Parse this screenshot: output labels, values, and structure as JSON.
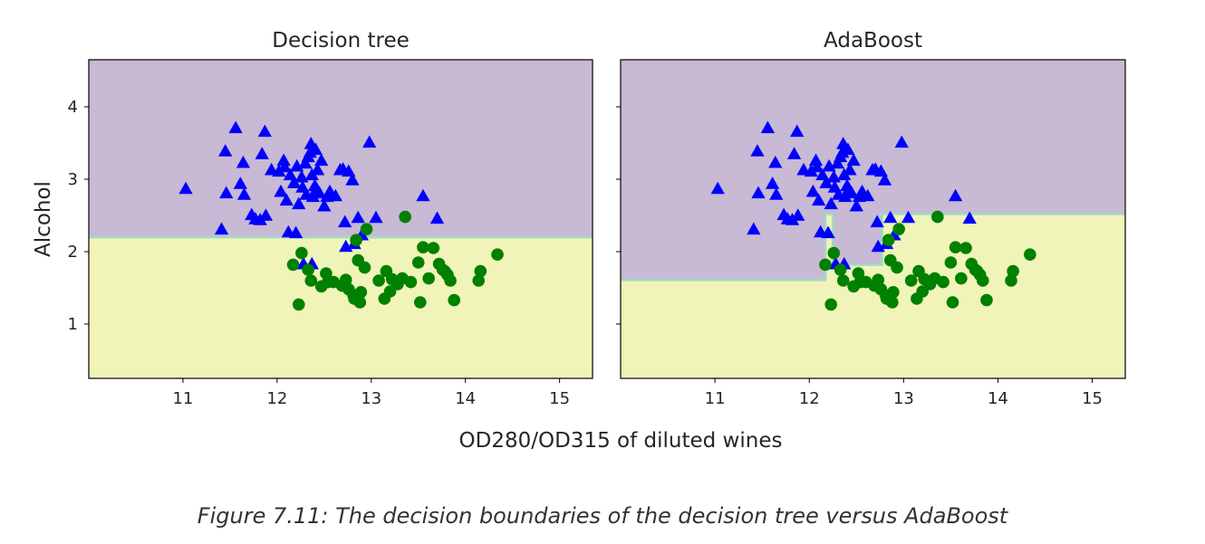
{
  "figure": {
    "xlabel": "OD280/OD315 of diluted wines",
    "ylabel": "Alcohol",
    "caption": "Figure 7.11: The decision boundaries of the decision tree versus AdaBoost"
  },
  "colors": {
    "region_top": "#c8b9d4",
    "region_bottom": "#f0f4b8",
    "boundary": "#9fd6c6",
    "class_triangle": "#0000ff",
    "class_circle": "#008000",
    "axis": "#000000"
  },
  "chart_data": [
    {
      "type": "scatter",
      "title": "Decision tree",
      "xlabel": "",
      "ylabel": "Alcohol",
      "xlim": [
        10.0,
        15.35
      ],
      "ylim": [
        0.25,
        4.65
      ],
      "xticks": [
        11,
        12,
        13,
        14,
        15
      ],
      "yticks": [
        1,
        2,
        3,
        4
      ],
      "grid": false,
      "boundary": [
        [
          10.0,
          2.2
        ],
        [
          15.35,
          2.2
        ]
      ],
      "series": [
        {
          "marker": "triangle",
          "color": "#0000ff",
          "points": [
            [
              11.03,
              2.86
            ],
            [
              11.41,
              2.3
            ],
            [
              11.45,
              3.38
            ],
            [
              11.46,
              2.8
            ],
            [
              11.56,
              3.7
            ],
            [
              11.61,
              2.93
            ],
            [
              11.64,
              3.22
            ],
            [
              11.65,
              2.78
            ],
            [
              11.73,
              2.5
            ],
            [
              11.77,
              2.44
            ],
            [
              11.82,
              2.43
            ],
            [
              11.84,
              3.34
            ],
            [
              11.87,
              3.65
            ],
            [
              11.88,
              2.49
            ],
            [
              11.94,
              3.12
            ],
            [
              12.02,
              3.1
            ],
            [
              12.04,
              2.82
            ],
            [
              12.07,
              3.25
            ],
            [
              12.08,
              3.16
            ],
            [
              12.1,
              2.7
            ],
            [
              12.12,
              2.26
            ],
            [
              12.14,
              3.05
            ],
            [
              12.18,
              2.94
            ],
            [
              12.2,
              2.25
            ],
            [
              12.21,
              3.17
            ],
            [
              12.23,
              2.65
            ],
            [
              12.26,
              3.02
            ],
            [
              12.27,
              2.88
            ],
            [
              12.3,
              3.21
            ],
            [
              12.31,
              2.78
            ],
            [
              12.33,
              3.3
            ],
            [
              12.35,
              3.36
            ],
            [
              12.36,
              3.48
            ],
            [
              12.37,
              3.05
            ],
            [
              12.38,
              2.75
            ],
            [
              12.4,
              2.9
            ],
            [
              12.41,
              3.4
            ],
            [
              12.42,
              2.86
            ],
            [
              12.43,
              3.12
            ],
            [
              12.45,
              2.8
            ],
            [
              12.47,
              3.25
            ],
            [
              12.5,
              2.62
            ],
            [
              12.53,
              2.75
            ],
            [
              12.56,
              2.82
            ],
            [
              12.62,
              2.76
            ],
            [
              12.67,
              3.12
            ],
            [
              12.7,
              3.13
            ],
            [
              12.72,
              2.4
            ],
            [
              12.73,
              2.06
            ],
            [
              12.76,
              3.1
            ],
            [
              12.8,
              2.98
            ],
            [
              12.82,
              2.1
            ],
            [
              12.86,
              2.46
            ],
            [
              12.9,
              2.22
            ],
            [
              12.98,
              3.5
            ],
            [
              13.05,
              2.46
            ],
            [
              13.55,
              2.76
            ],
            [
              13.7,
              2.45
            ],
            [
              12.28,
              1.82
            ],
            [
              12.37,
              1.82
            ]
          ]
        },
        {
          "marker": "circle",
          "color": "#008000",
          "points": [
            [
              12.17,
              1.82
            ],
            [
              12.23,
              1.27
            ],
            [
              12.26,
              1.98
            ],
            [
              12.33,
              1.75
            ],
            [
              12.36,
              1.6
            ],
            [
              12.47,
              1.52
            ],
            [
              12.52,
              1.7
            ],
            [
              12.54,
              1.58
            ],
            [
              12.6,
              1.58
            ],
            [
              12.69,
              1.53
            ],
            [
              12.73,
              1.61
            ],
            [
              12.76,
              1.48
            ],
            [
              12.81,
              1.4
            ],
            [
              12.82,
              1.35
            ],
            [
              12.84,
              2.16
            ],
            [
              12.86,
              1.88
            ],
            [
              12.88,
              1.3
            ],
            [
              12.89,
              1.44
            ],
            [
              12.93,
              1.78
            ],
            [
              12.95,
              2.31
            ],
            [
              13.08,
              1.6
            ],
            [
              13.14,
              1.35
            ],
            [
              13.16,
              1.73
            ],
            [
              13.2,
              1.45
            ],
            [
              13.22,
              1.62
            ],
            [
              13.28,
              1.55
            ],
            [
              13.33,
              1.63
            ],
            [
              13.36,
              2.48
            ],
            [
              13.42,
              1.58
            ],
            [
              13.5,
              1.85
            ],
            [
              13.52,
              1.3
            ],
            [
              13.55,
              2.06
            ],
            [
              13.61,
              1.63
            ],
            [
              13.66,
              2.05
            ],
            [
              13.72,
              1.83
            ],
            [
              13.76,
              1.75
            ],
            [
              13.78,
              1.73
            ],
            [
              13.81,
              1.68
            ],
            [
              13.84,
              1.6
            ],
            [
              13.88,
              1.33
            ],
            [
              14.14,
              1.6
            ],
            [
              14.16,
              1.73
            ],
            [
              14.34,
              1.96
            ]
          ]
        }
      ]
    },
    {
      "type": "scatter",
      "title": "AdaBoost",
      "xlabel": "",
      "ylabel": "",
      "xlim": [
        10.0,
        15.35
      ],
      "ylim": [
        0.25,
        4.65
      ],
      "xticks": [
        11,
        12,
        13,
        14,
        15
      ],
      "yticks": [
        1,
        2,
        3,
        4
      ],
      "grid": false,
      "boundary": [
        [
          10.0,
          1.61
        ],
        [
          12.17,
          1.61
        ],
        [
          12.17,
          2.52
        ],
        [
          12.25,
          2.52
        ],
        [
          12.25,
          1.82
        ],
        [
          12.77,
          1.82
        ],
        [
          12.77,
          2.52
        ],
        [
          13.12,
          2.52
        ],
        [
          13.12,
          2.52
        ],
        [
          15.35,
          2.52
        ]
      ],
      "series": [
        {
          "marker": "triangle",
          "color": "#0000ff",
          "points": [
            [
              11.03,
              2.86
            ],
            [
              11.41,
              2.3
            ],
            [
              11.45,
              3.38
            ],
            [
              11.46,
              2.8
            ],
            [
              11.56,
              3.7
            ],
            [
              11.61,
              2.93
            ],
            [
              11.64,
              3.22
            ],
            [
              11.65,
              2.78
            ],
            [
              11.73,
              2.5
            ],
            [
              11.77,
              2.44
            ],
            [
              11.82,
              2.43
            ],
            [
              11.84,
              3.34
            ],
            [
              11.87,
              3.65
            ],
            [
              11.88,
              2.49
            ],
            [
              11.94,
              3.12
            ],
            [
              12.02,
              3.1
            ],
            [
              12.04,
              2.82
            ],
            [
              12.07,
              3.25
            ],
            [
              12.08,
              3.16
            ],
            [
              12.1,
              2.7
            ],
            [
              12.12,
              2.26
            ],
            [
              12.14,
              3.05
            ],
            [
              12.18,
              2.94
            ],
            [
              12.2,
              2.25
            ],
            [
              12.21,
              3.17
            ],
            [
              12.23,
              2.65
            ],
            [
              12.26,
              3.02
            ],
            [
              12.27,
              2.88
            ],
            [
              12.3,
              3.21
            ],
            [
              12.31,
              2.78
            ],
            [
              12.33,
              3.3
            ],
            [
              12.35,
              3.36
            ],
            [
              12.36,
              3.48
            ],
            [
              12.37,
              3.05
            ],
            [
              12.38,
              2.75
            ],
            [
              12.4,
              2.9
            ],
            [
              12.41,
              3.4
            ],
            [
              12.42,
              2.86
            ],
            [
              12.43,
              3.12
            ],
            [
              12.45,
              2.8
            ],
            [
              12.47,
              3.25
            ],
            [
              12.5,
              2.62
            ],
            [
              12.53,
              2.75
            ],
            [
              12.56,
              2.82
            ],
            [
              12.62,
              2.76
            ],
            [
              12.67,
              3.12
            ],
            [
              12.7,
              3.13
            ],
            [
              12.72,
              2.4
            ],
            [
              12.73,
              2.06
            ],
            [
              12.76,
              3.1
            ],
            [
              12.8,
              2.98
            ],
            [
              12.82,
              2.1
            ],
            [
              12.86,
              2.46
            ],
            [
              12.9,
              2.22
            ],
            [
              12.98,
              3.5
            ],
            [
              13.05,
              2.46
            ],
            [
              13.55,
              2.76
            ],
            [
              13.7,
              2.45
            ],
            [
              12.28,
              1.82
            ],
            [
              12.37,
              1.82
            ]
          ]
        },
        {
          "marker": "circle",
          "color": "#008000",
          "points": [
            [
              12.17,
              1.82
            ],
            [
              12.23,
              1.27
            ],
            [
              12.26,
              1.98
            ],
            [
              12.33,
              1.75
            ],
            [
              12.36,
              1.6
            ],
            [
              12.47,
              1.52
            ],
            [
              12.52,
              1.7
            ],
            [
              12.54,
              1.58
            ],
            [
              12.6,
              1.58
            ],
            [
              12.69,
              1.53
            ],
            [
              12.73,
              1.61
            ],
            [
              12.76,
              1.48
            ],
            [
              12.81,
              1.4
            ],
            [
              12.82,
              1.35
            ],
            [
              12.84,
              2.16
            ],
            [
              12.86,
              1.88
            ],
            [
              12.88,
              1.3
            ],
            [
              12.89,
              1.44
            ],
            [
              12.93,
              1.78
            ],
            [
              12.95,
              2.31
            ],
            [
              13.08,
              1.6
            ],
            [
              13.14,
              1.35
            ],
            [
              13.16,
              1.73
            ],
            [
              13.2,
              1.45
            ],
            [
              13.22,
              1.62
            ],
            [
              13.28,
              1.55
            ],
            [
              13.33,
              1.63
            ],
            [
              13.36,
              2.48
            ],
            [
              13.42,
              1.58
            ],
            [
              13.5,
              1.85
            ],
            [
              13.52,
              1.3
            ],
            [
              13.55,
              2.06
            ],
            [
              13.61,
              1.63
            ],
            [
              13.66,
              2.05
            ],
            [
              13.72,
              1.83
            ],
            [
              13.76,
              1.75
            ],
            [
              13.78,
              1.73
            ],
            [
              13.81,
              1.68
            ],
            [
              13.84,
              1.6
            ],
            [
              13.88,
              1.33
            ],
            [
              14.14,
              1.6
            ],
            [
              14.16,
              1.73
            ],
            [
              14.34,
              1.96
            ]
          ]
        }
      ]
    }
  ]
}
